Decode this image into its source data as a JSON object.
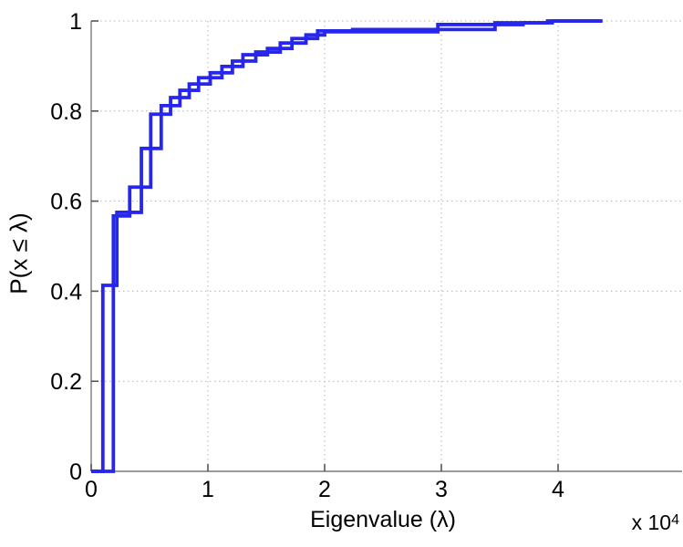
{
  "chart_data": {
    "type": "line",
    "subtype": "empirical-cdf-step",
    "title": "",
    "xlabel": "Eigenvalue (λ)",
    "ylabel": "P(x ≤ λ)",
    "x_axis_multiplier": {
      "prefix": "x 10",
      "exponent": "4"
    },
    "x_unit_scale": 10000,
    "xlim": [
      0,
      5.06
    ],
    "ylim": [
      0,
      1
    ],
    "x_ticks": [
      {
        "value": 0,
        "label": "0"
      },
      {
        "value": 1,
        "label": "1"
      },
      {
        "value": 2,
        "label": "2"
      },
      {
        "value": 3,
        "label": "3"
      },
      {
        "value": 4,
        "label": "4"
      }
    ],
    "y_ticks": [
      {
        "value": 0,
        "label": "0"
      },
      {
        "value": 0.2,
        "label": "0.2"
      },
      {
        "value": 0.4,
        "label": "0.4"
      },
      {
        "value": 0.6,
        "label": "0.6"
      },
      {
        "value": 0.8,
        "label": "0.8"
      },
      {
        "value": 1,
        "label": "1"
      }
    ],
    "grid": "dotted, at every major tick",
    "legend": "none",
    "line_color": "#2626ee",
    "axis_color": "#7a7a7a",
    "tick_color": "#555555",
    "grid_color": "#b4b4b4",
    "series": [
      {
        "name": "ecdf-curve-1",
        "start_x": 0,
        "end_x": 4.38,
        "steps": [
          [
            0.1,
            0.413
          ],
          [
            0.22,
            0.575
          ],
          [
            0.43,
            0.717
          ],
          [
            0.6,
            0.812
          ],
          [
            0.76,
            0.846
          ],
          [
            0.92,
            0.874
          ],
          [
            1.12,
            0.899
          ],
          [
            1.3,
            0.925
          ],
          [
            1.51,
            0.939
          ],
          [
            1.72,
            0.961
          ],
          [
            1.94,
            0.978
          ],
          [
            2.24,
            0.981
          ],
          [
            3.46,
            0.996
          ],
          [
            3.91,
            1.0
          ]
        ]
      },
      {
        "name": "ecdf-curve-2",
        "start_x": 0,
        "end_x": 4.38,
        "steps": [
          [
            0.19,
            0.567
          ],
          [
            0.33,
            0.631
          ],
          [
            0.51,
            0.793
          ],
          [
            0.68,
            0.83
          ],
          [
            0.84,
            0.86
          ],
          [
            1.02,
            0.885
          ],
          [
            1.21,
            0.911
          ],
          [
            1.41,
            0.931
          ],
          [
            1.62,
            0.951
          ],
          [
            1.84,
            0.969
          ],
          [
            2.0,
            0.976
          ],
          [
            2.97,
            0.992
          ],
          [
            3.7,
            0.996
          ],
          [
            3.95,
            1.0
          ]
        ]
      }
    ]
  }
}
